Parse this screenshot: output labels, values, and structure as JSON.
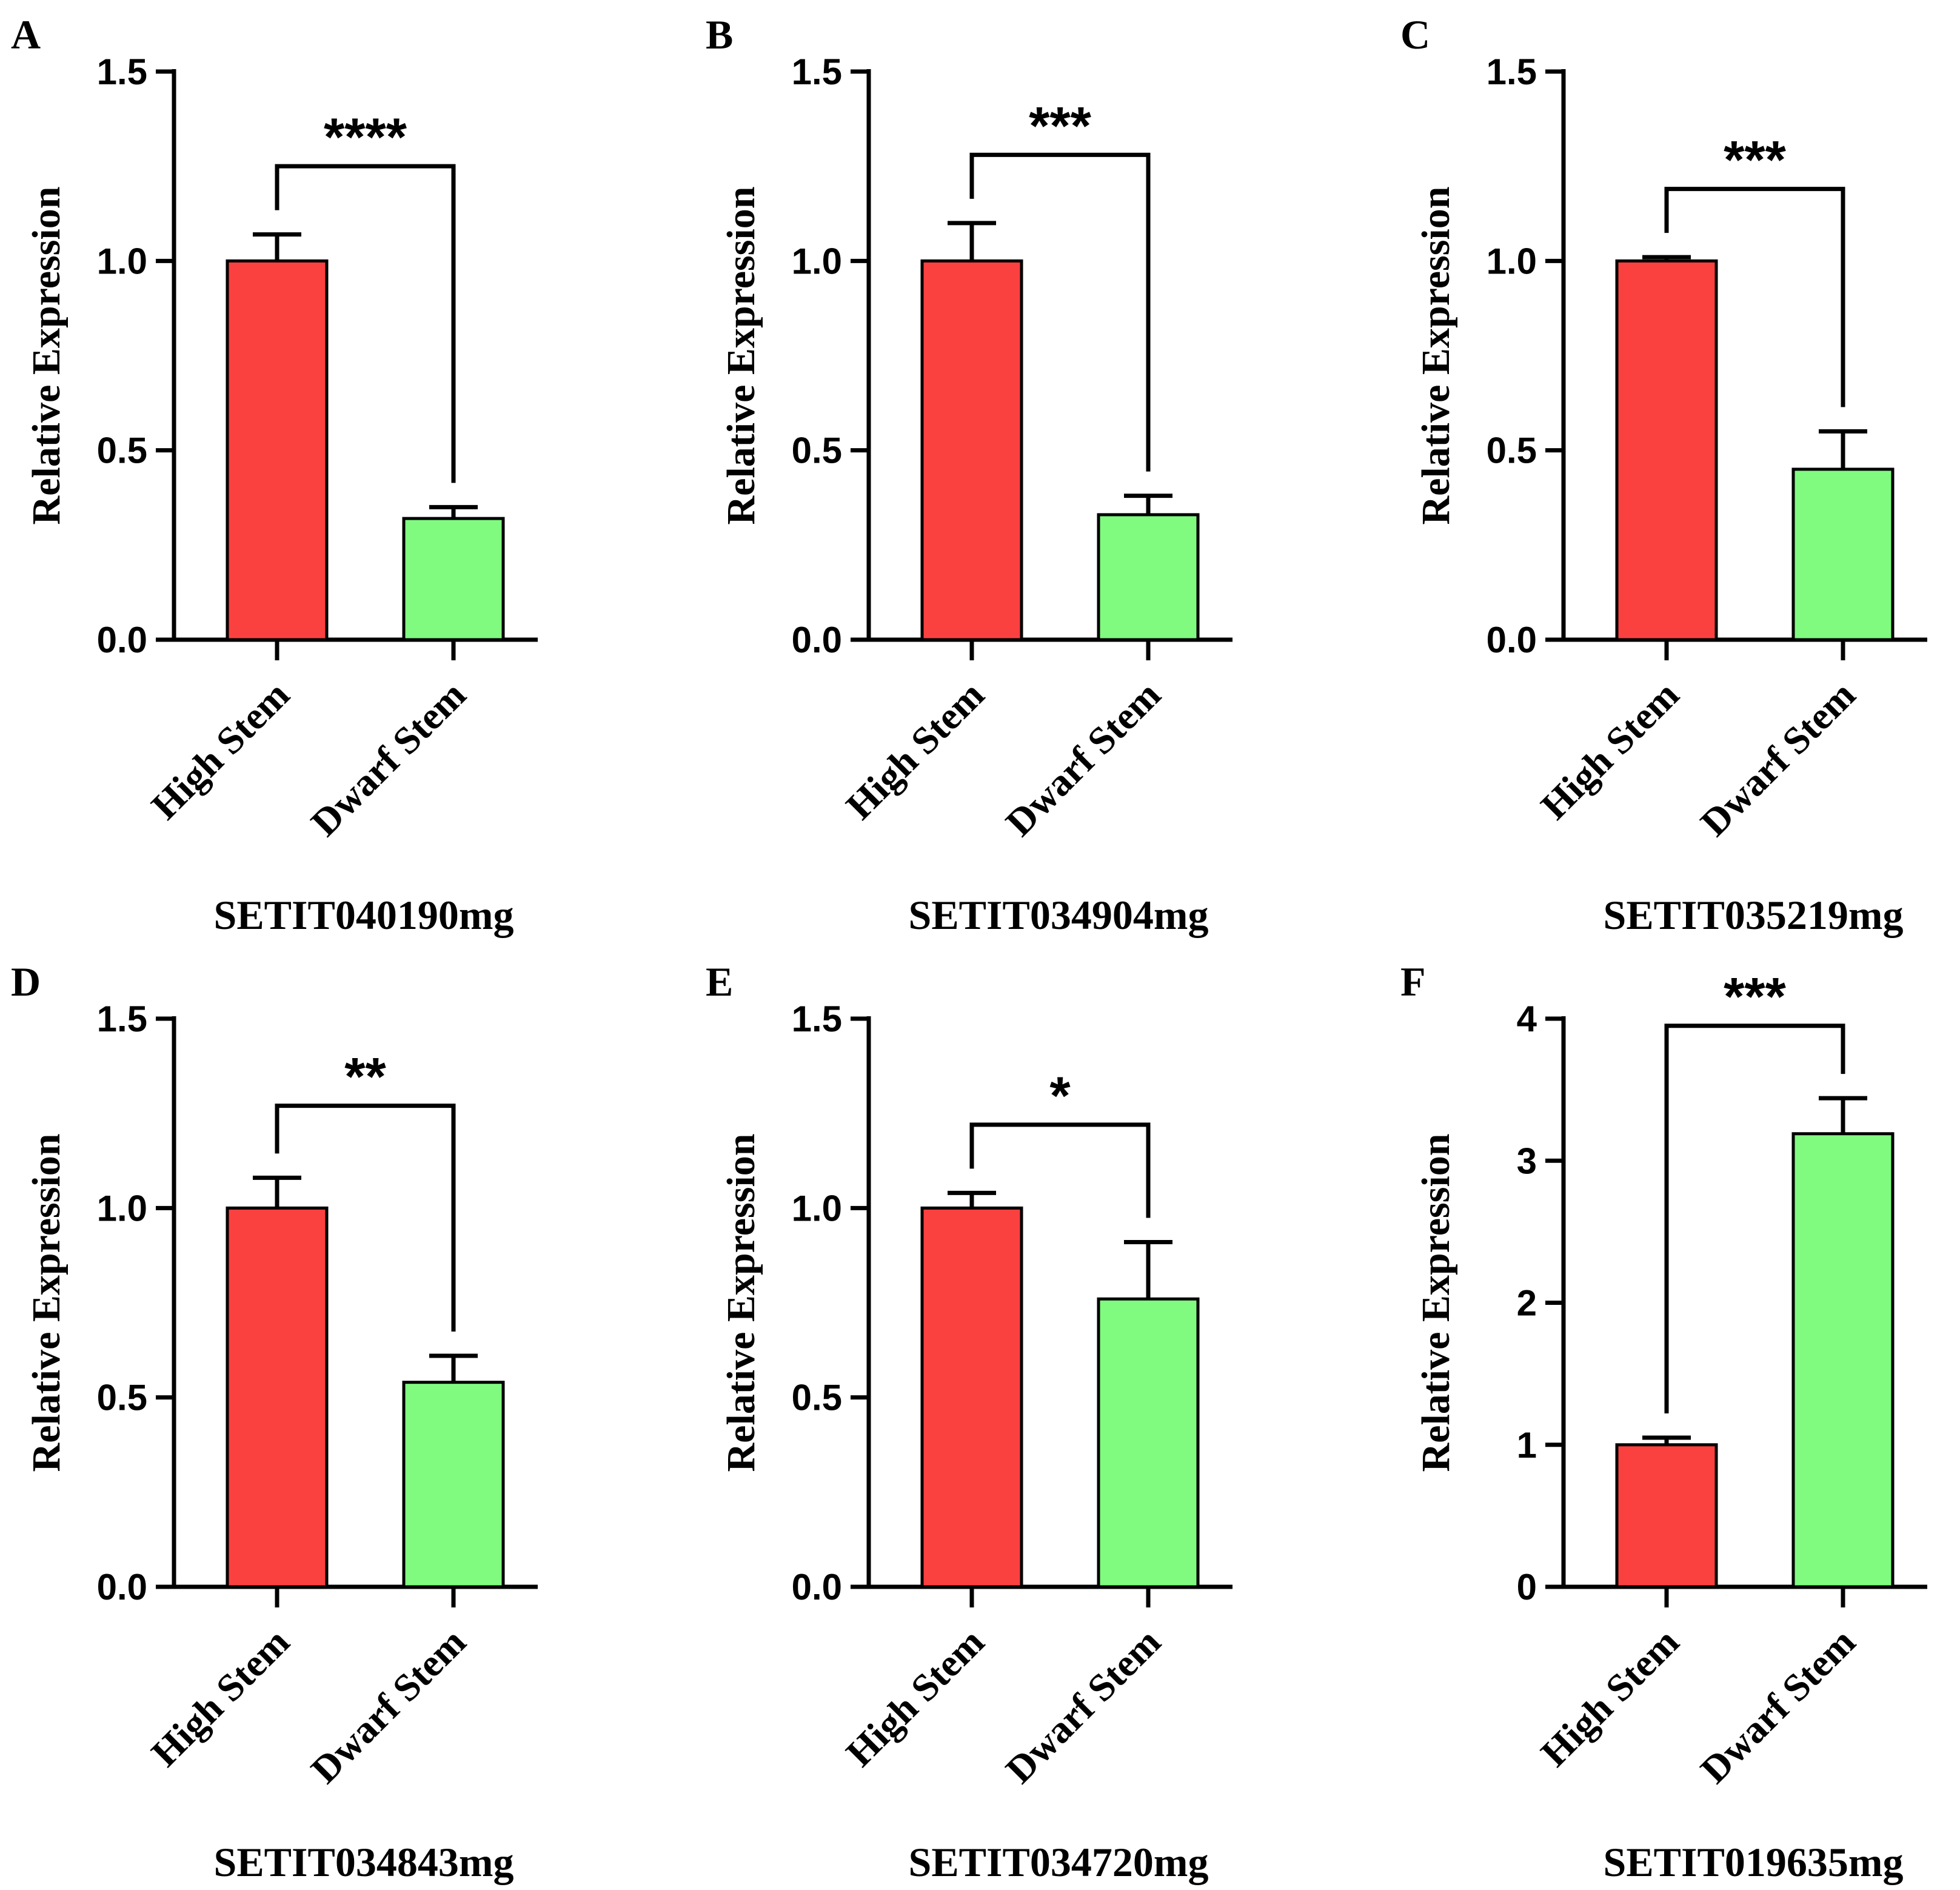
{
  "figure": {
    "ylabel": "Relative Expression",
    "categories": [
      "High Stem",
      "Dwarf Stem"
    ]
  },
  "colors": {
    "high": "#fb4040",
    "dwarf": "#80fb80",
    "axis": "#000000"
  },
  "chart_data": [
    {
      "panel": "A",
      "type": "bar",
      "title": "SETIT040190mg",
      "ylabel": "Relative Expression",
      "categories": [
        "High Stem",
        "Dwarf Stem"
      ],
      "values": [
        1.0,
        0.32
      ],
      "errors": [
        0.07,
        0.03
      ],
      "ylim": [
        0,
        1.5
      ],
      "yticks": [
        0,
        0.5,
        1.0,
        1.5
      ],
      "ytick_labels": [
        "0.0",
        "0.5",
        "1.0",
        "1.5"
      ],
      "significance": "****",
      "sig_level": 1.25
    },
    {
      "panel": "B",
      "type": "bar",
      "title": "SETIT034904mg",
      "ylabel": "Relative Expression",
      "categories": [
        "High Stem",
        "Dwarf Stem"
      ],
      "values": [
        1.0,
        0.33
      ],
      "errors": [
        0.1,
        0.05
      ],
      "ylim": [
        0,
        1.5
      ],
      "yticks": [
        0,
        0.5,
        1.0,
        1.5
      ],
      "ytick_labels": [
        "0.0",
        "0.5",
        "1.0",
        "1.5"
      ],
      "significance": "***",
      "sig_level": 1.28
    },
    {
      "panel": "C",
      "type": "bar",
      "title": "SETIT035219mg",
      "ylabel": "Relative Expression",
      "categories": [
        "High Stem",
        "Dwarf Stem"
      ],
      "values": [
        1.0,
        0.45
      ],
      "errors": [
        0.01,
        0.1
      ],
      "ylim": [
        0,
        1.5
      ],
      "yticks": [
        0,
        0.5,
        1.0,
        1.5
      ],
      "ytick_labels": [
        "0.0",
        "0.5",
        "1.0",
        "1.5"
      ],
      "significance": "***",
      "sig_level": 1.19
    },
    {
      "panel": "D",
      "type": "bar",
      "title": "SETIT034843mg",
      "ylabel": "Relative Expression",
      "categories": [
        "High Stem",
        "Dwarf Stem"
      ],
      "values": [
        1.0,
        0.54
      ],
      "errors": [
        0.08,
        0.07
      ],
      "ylim": [
        0,
        1.5
      ],
      "yticks": [
        0,
        0.5,
        1.0,
        1.5
      ],
      "ytick_labels": [
        "0.0",
        "0.5",
        "1.0",
        "1.5"
      ],
      "significance": "**",
      "sig_level": 1.27
    },
    {
      "panel": "E",
      "type": "bar",
      "title": "SETIT034720mg",
      "ylabel": "Relative Expression",
      "categories": [
        "High Stem",
        "Dwarf Stem"
      ],
      "values": [
        1.0,
        0.76
      ],
      "errors": [
        0.04,
        0.15
      ],
      "ylim": [
        0,
        1.5
      ],
      "yticks": [
        0,
        0.5,
        1.0,
        1.5
      ],
      "ytick_labels": [
        "0.0",
        "0.5",
        "1.0",
        "1.5"
      ],
      "significance": "*",
      "sig_level": 1.22
    },
    {
      "panel": "F",
      "type": "bar",
      "title": "SETIT019635mg",
      "ylabel": "Relative Expression",
      "categories": [
        "High Stem",
        "Dwarf Stem"
      ],
      "values": [
        1.0,
        3.19
      ],
      "errors": [
        0.05,
        0.25
      ],
      "ylim": [
        0,
        4
      ],
      "yticks": [
        0,
        1,
        2,
        3,
        4
      ],
      "ytick_labels": [
        "0",
        "1",
        "2",
        "3",
        "4"
      ],
      "significance": "***",
      "sig_level": 3.95
    }
  ]
}
